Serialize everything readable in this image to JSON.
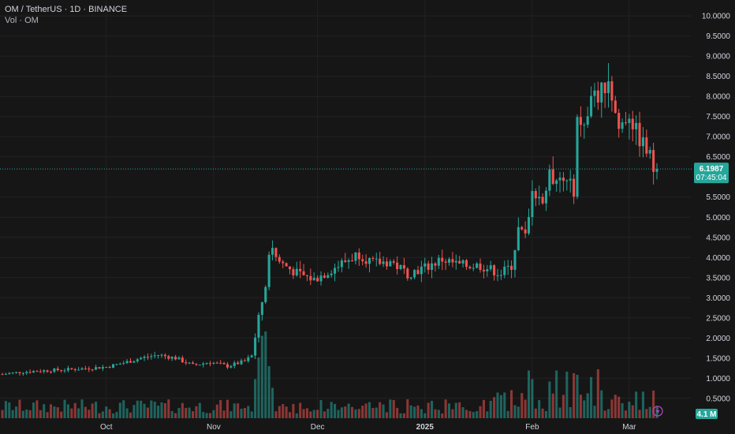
{
  "header": {
    "symbol": "OM / TetherUS · 1D · BINANCE",
    "volume_label": "Vol · OM"
  },
  "colors": {
    "up": "#26a69a",
    "down": "#ef5350",
    "background": "#161616",
    "grid": "#222222",
    "badge": "#26a69a"
  },
  "price_badge": {
    "price": "6.1987",
    "countdown": "07:45:04",
    "value": 6.1987
  },
  "volume_badge": {
    "label": "4.1 M"
  },
  "flash_icon": "lightning-icon",
  "chart_data": {
    "type": "candlestick",
    "y_ticks": [
      "10.0000",
      "9.5000",
      "9.0000",
      "8.5000",
      "8.0000",
      "7.5000",
      "7.0000",
      "6.5000",
      "5.5000",
      "5.0000",
      "4.5000",
      "4.0000",
      "3.5000",
      "3.0000",
      "2.5000",
      "2.0000",
      "1.5000",
      "1.0000",
      "0.5000"
    ],
    "y_tick_values": [
      10.0,
      9.5,
      9.0,
      8.5,
      8.0,
      7.5,
      7.0,
      6.5,
      5.5,
      5.0,
      4.5,
      4.0,
      3.5,
      3.0,
      2.5,
      2.0,
      1.5,
      1.0,
      0.5
    ],
    "ylim": [
      0.3,
      10.2
    ],
    "x_ticks": [
      {
        "label": "Oct",
        "index": 30,
        "bold": false
      },
      {
        "label": "Nov",
        "index": 61,
        "bold": false
      },
      {
        "label": "Dec",
        "index": 91,
        "bold": false
      },
      {
        "label": "2025",
        "index": 122,
        "bold": true
      },
      {
        "label": "Feb",
        "index": 153,
        "bold": false
      },
      {
        "label": "Mar",
        "index": 181,
        "bold": false
      }
    ],
    "close_points": [
      [
        0,
        1.1
      ],
      [
        5,
        1.15
      ],
      [
        10,
        1.18
      ],
      [
        15,
        1.2
      ],
      [
        20,
        1.22
      ],
      [
        25,
        1.25
      ],
      [
        30,
        1.28
      ],
      [
        35,
        1.38
      ],
      [
        40,
        1.5
      ],
      [
        45,
        1.58
      ],
      [
        50,
        1.5
      ],
      [
        55,
        1.32
      ],
      [
        60,
        1.4
      ],
      [
        65,
        1.3
      ],
      [
        70,
        1.42
      ],
      [
        72,
        1.55
      ],
      [
        74,
        2.5
      ],
      [
        76,
        3.3
      ],
      [
        77,
        4.2
      ],
      [
        80,
        3.9
      ],
      [
        85,
        3.6
      ],
      [
        90,
        3.45
      ],
      [
        95,
        3.7
      ],
      [
        100,
        3.95
      ],
      [
        103,
        4.1
      ],
      [
        107,
        3.85
      ],
      [
        112,
        3.9
      ],
      [
        117,
        3.6
      ],
      [
        122,
        3.75
      ],
      [
        127,
        3.95
      ],
      [
        132,
        3.8
      ],
      [
        138,
        3.8
      ],
      [
        144,
        3.6
      ],
      [
        147,
        3.8
      ],
      [
        149,
        4.7
      ],
      [
        151,
        4.5
      ],
      [
        153,
        5.8
      ],
      [
        156,
        5.4
      ],
      [
        158,
        6.0
      ],
      [
        162,
        5.9
      ],
      [
        165,
        5.7
      ],
      [
        166,
        7.6
      ],
      [
        168,
        7.2
      ],
      [
        170,
        7.9
      ],
      [
        173,
        8.1
      ],
      [
        175,
        8.5
      ],
      [
        176,
        8.0
      ],
      [
        178,
        7.2
      ],
      [
        181,
        7.6
      ],
      [
        183,
        7.1
      ],
      [
        185,
        6.8
      ],
      [
        187,
        6.5
      ],
      [
        188,
        6.2
      ]
    ],
    "volume_spikes": {
      "73": 0.45,
      "74": 0.7,
      "75": 0.95,
      "76": 1.0,
      "77": 0.6,
      "78": 0.35,
      "152": 0.55,
      "153": 0.45,
      "160": 0.55,
      "166": 0.5
    }
  }
}
